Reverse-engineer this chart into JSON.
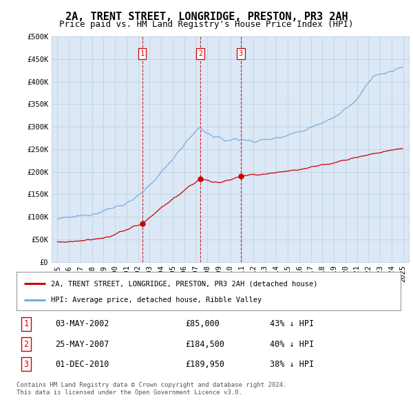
{
  "title": "2A, TRENT STREET, LONGRIDGE, PRESTON, PR3 2AH",
  "subtitle": "Price paid vs. HM Land Registry's House Price Index (HPI)",
  "ylabel_ticks": [
    "£0",
    "£50K",
    "£100K",
    "£150K",
    "£200K",
    "£250K",
    "£300K",
    "£350K",
    "£400K",
    "£450K",
    "£500K"
  ],
  "ytick_values": [
    0,
    50000,
    100000,
    150000,
    200000,
    250000,
    300000,
    350000,
    400000,
    450000,
    500000
  ],
  "xlim_start": 1994.5,
  "xlim_end": 2025.5,
  "ylim": [
    0,
    500000
  ],
  "transactions": [
    {
      "num": 1,
      "date_str": "03-MAY-2002",
      "price": 85000,
      "pct": "43%",
      "x": 2002.37
    },
    {
      "num": 2,
      "date_str": "25-MAY-2007",
      "price": 184500,
      "pct": "40%",
      "x": 2007.4
    },
    {
      "num": 3,
      "date_str": "01-DEC-2010",
      "price": 189950,
      "pct": "38%",
      "x": 2010.92
    }
  ],
  "legend_label_property": "2A, TRENT STREET, LONGRIDGE, PRESTON, PR3 2AH (detached house)",
  "legend_label_hpi": "HPI: Average price, detached house, Ribble Valley",
  "footer_line1": "Contains HM Land Registry data © Crown copyright and database right 2024.",
  "footer_line2": "This data is licensed under the Open Government Licence v3.0.",
  "property_color": "#cc0000",
  "hpi_color": "#7aabe0",
  "dashed_color": "#cc0000",
  "background_color": "#ffffff",
  "chart_bg_color": "#dce8f5",
  "grid_color": "#b8cfe0",
  "title_fontsize": 11,
  "subtitle_fontsize": 9,
  "tick_fontsize": 7.5,
  "hpi_anchors_x": [
    1995.0,
    1996.0,
    1997.5,
    1999.0,
    2001.0,
    2002.5,
    2004.0,
    2005.5,
    2007.3,
    2008.5,
    2009.5,
    2010.5,
    2012.0,
    2013.5,
    2015.0,
    2016.5,
    2018.0,
    2019.5,
    2021.0,
    2022.5,
    2023.5,
    2024.9
  ],
  "hpi_anchors_y": [
    95000,
    98000,
    104000,
    113000,
    130000,
    155000,
    198000,
    245000,
    298000,
    278000,
    270000,
    272000,
    268000,
    272000,
    282000,
    293000,
    310000,
    328000,
    360000,
    415000,
    418000,
    432000
  ],
  "prop_anchors_x": [
    1995.0,
    1997.0,
    1999.0,
    2002.37,
    2004.0,
    2007.4,
    2009.0,
    2010.92,
    2013.0,
    2016.0,
    2019.0,
    2022.0,
    2024.9
  ],
  "prop_anchors_y": [
    44000,
    46000,
    52000,
    85000,
    120000,
    184500,
    175000,
    189950,
    195000,
    205000,
    220000,
    238000,
    252000
  ]
}
